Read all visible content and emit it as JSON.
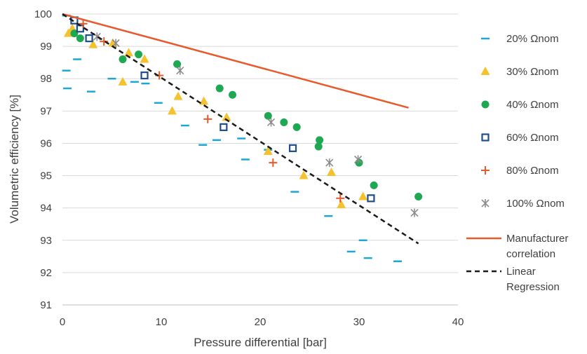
{
  "chart_data": {
    "type": "scatter",
    "title": "",
    "xlabel": "Pressure differential [bar]",
    "ylabel": "Volumetric efficiency [%]",
    "xlim": [
      0,
      40
    ],
    "ylim": [
      91,
      100
    ],
    "x_ticks": [
      "0",
      "10",
      "20",
      "30",
      "40"
    ],
    "y_ticks": [
      "91",
      "92",
      "93",
      "94",
      "95",
      "96",
      "97",
      "98",
      "99",
      "100"
    ],
    "grid": "horizontal",
    "legend_position": "right",
    "series": [
      {
        "name": "20% Ωnom",
        "marker": "dash",
        "color": "#1FA7D4",
        "points": [
          [
            0.4,
            99.95
          ],
          [
            1.2,
            99.9
          ],
          [
            0.4,
            98.25
          ],
          [
            1.5,
            98.6
          ],
          [
            0.5,
            97.7
          ],
          [
            2.9,
            97.6
          ],
          [
            5.0,
            98.0
          ],
          [
            7.3,
            97.9
          ],
          [
            8.4,
            97.85
          ],
          [
            9.7,
            97.25
          ],
          [
            12.4,
            96.55
          ],
          [
            14.2,
            95.95
          ],
          [
            15.6,
            96.1
          ],
          [
            18.1,
            96.15
          ],
          [
            18.5,
            95.5
          ],
          [
            20.8,
            95.8
          ],
          [
            23.5,
            94.5
          ],
          [
            26.9,
            93.75
          ],
          [
            29.2,
            92.65
          ],
          [
            30.4,
            93.0
          ],
          [
            30.9,
            92.45
          ],
          [
            33.9,
            92.35
          ]
        ]
      },
      {
        "name": "30% Ωnom",
        "marker": "triangle",
        "color": "#F5C12C",
        "points": [
          [
            0.6,
            99.4
          ],
          [
            1.0,
            99.55
          ],
          [
            3.1,
            99.05
          ],
          [
            5.1,
            99.1
          ],
          [
            6.1,
            97.9
          ],
          [
            6.7,
            98.8
          ],
          [
            8.3,
            98.6
          ],
          [
            11.1,
            97.0
          ],
          [
            11.7,
            97.45
          ],
          [
            14.3,
            97.3
          ],
          [
            16.6,
            96.8
          ],
          [
            20.8,
            95.75
          ],
          [
            24.4,
            95.0
          ],
          [
            27.2,
            95.1
          ],
          [
            28.2,
            94.1
          ],
          [
            30.4,
            94.35
          ]
        ]
      },
      {
        "name": "40% Ωnom",
        "marker": "circle",
        "color": "#1DA851",
        "points": [
          [
            1.2,
            99.4
          ],
          [
            1.8,
            99.25
          ],
          [
            6.1,
            98.6
          ],
          [
            7.7,
            98.75
          ],
          [
            11.6,
            98.45
          ],
          [
            15.9,
            97.7
          ],
          [
            17.2,
            97.5
          ],
          [
            20.8,
            96.85
          ],
          [
            22.4,
            96.65
          ],
          [
            23.7,
            96.5
          ],
          [
            26.0,
            96.1
          ],
          [
            25.9,
            95.9
          ],
          [
            30.0,
            95.4
          ],
          [
            31.5,
            94.7
          ],
          [
            36.0,
            94.35
          ]
        ]
      },
      {
        "name": "60% Ωnom",
        "marker": "square-open",
        "color": "#1F4E8C",
        "points": [
          [
            1.2,
            99.8
          ],
          [
            1.8,
            99.55
          ],
          [
            2.7,
            99.25
          ],
          [
            8.3,
            98.1
          ],
          [
            16.3,
            96.5
          ],
          [
            23.3,
            95.85
          ],
          [
            31.2,
            94.3
          ]
        ]
      },
      {
        "name": "80% Ωnom",
        "marker": "plus",
        "color": "#E8592B",
        "points": [
          [
            2.1,
            99.7
          ],
          [
            4.2,
            99.15
          ],
          [
            9.8,
            98.1
          ],
          [
            14.7,
            96.75
          ],
          [
            21.3,
            95.4
          ],
          [
            28.1,
            94.3
          ]
        ]
      },
      {
        "name": "100% Ωnom",
        "marker": "asterisk",
        "color": "#8C8C8C",
        "points": [
          [
            3.5,
            99.3
          ],
          [
            5.4,
            99.1
          ],
          [
            11.9,
            98.25
          ],
          [
            21.1,
            96.65
          ],
          [
            27.0,
            95.4
          ],
          [
            29.9,
            95.5
          ],
          [
            35.6,
            93.85
          ]
        ]
      },
      {
        "name": "Manufacturer correlation",
        "marker": "line",
        "color": "#E8592B",
        "points": [
          [
            0,
            100.0
          ],
          [
            35.0,
            97.1
          ]
        ]
      },
      {
        "name": "Linear Regression",
        "marker": "dashed-line",
        "color": "#1A1A1A",
        "points": [
          [
            0,
            100.0
          ],
          [
            36.0,
            92.9
          ]
        ]
      }
    ],
    "legend": [
      {
        "label": "20% Ωnom"
      },
      {
        "label": "30% Ωnom"
      },
      {
        "label": "40% Ωnom"
      },
      {
        "label": "60% Ωnom"
      },
      {
        "label": "80% Ωnom"
      },
      {
        "label": "100% Ωnom"
      },
      {
        "label": "Manufacturer correlation",
        "lines": [
          "Manufacturer",
          "correlation"
        ]
      },
      {
        "label": "Linear Regression",
        "lines": [
          "Linear",
          "Regression"
        ]
      }
    ]
  }
}
